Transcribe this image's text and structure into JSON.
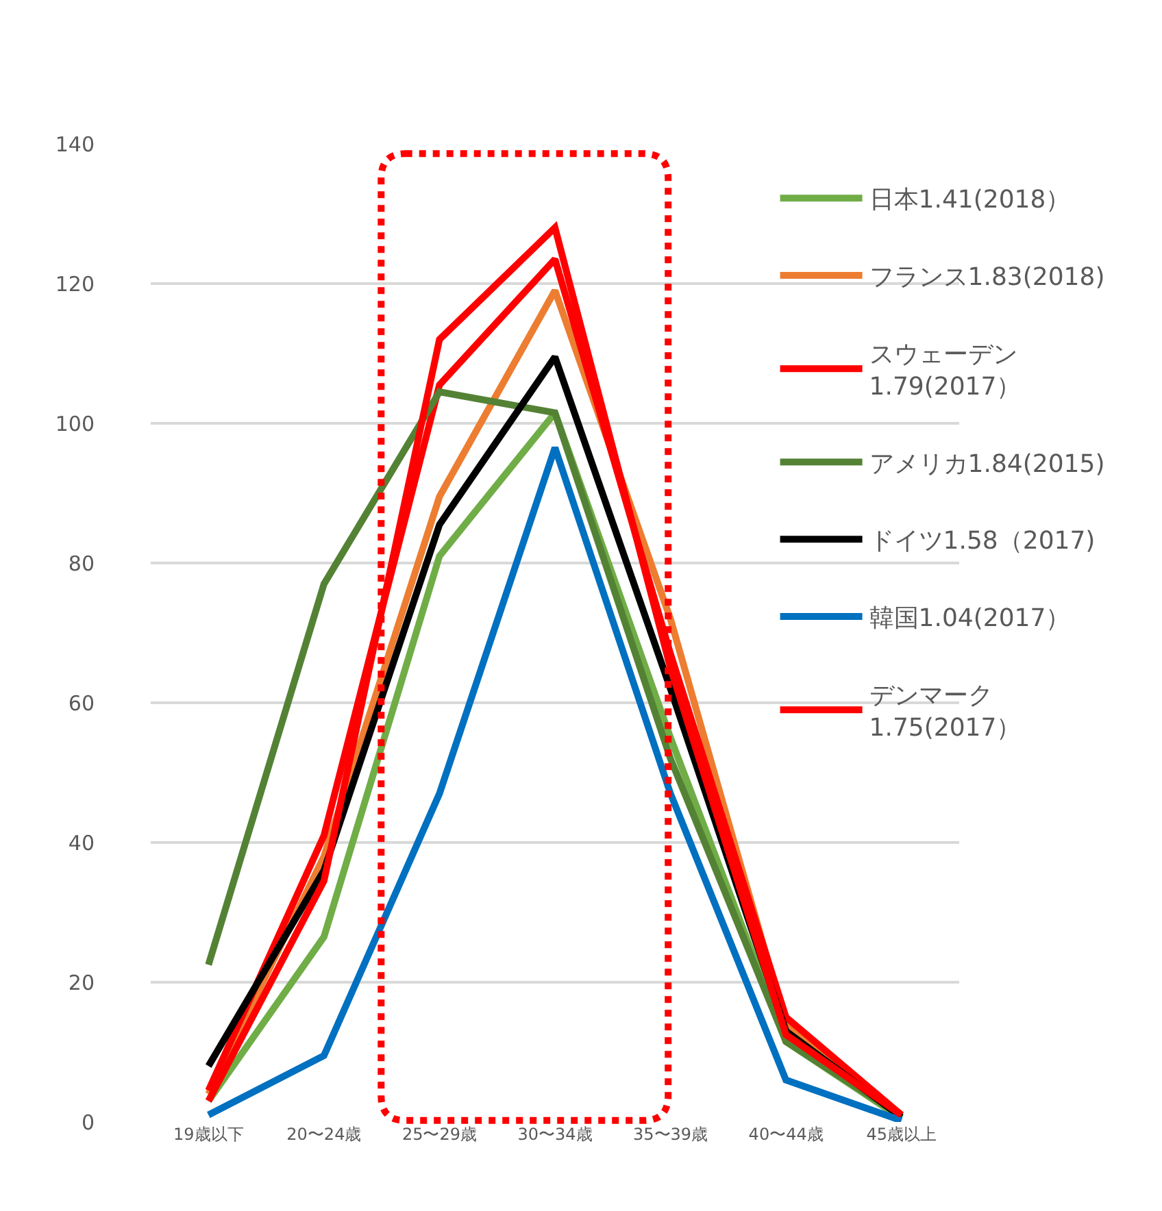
{
  "chart_data": {
    "type": "line",
    "categories": [
      "19歳以下",
      "20〜24歳",
      "25〜29歳",
      "30〜34歳",
      "35〜39歳",
      "40〜44歳",
      "45歳以上"
    ],
    "series": [
      {
        "name": "日本1.41(2018）",
        "color": "#70ad47",
        "values": [
          3,
          26.5,
          81,
          101.5,
          55,
          11.5,
          0.5
        ]
      },
      {
        "name": "フランス1.83(2018)",
        "color": "#ed7d31",
        "values": [
          4,
          38,
          89.5,
          119,
          72,
          14,
          1
        ]
      },
      {
        "name": "スウェーデン\n1.79(2017）",
        "color": "#ff0000",
        "values": [
          4.5,
          41,
          105.5,
          123.5,
          67,
          15,
          1
        ]
      },
      {
        "name": "アメリカ1.84(2015)",
        "color": "#548235",
        "values": [
          22.5,
          77,
          104.5,
          101.5,
          52,
          11.5,
          0.8
        ]
      },
      {
        "name": "ドイツ1.58（2017)",
        "color": "#000000",
        "values": [
          8,
          36,
          85.5,
          109.5,
          62,
          13,
          0.7
        ]
      },
      {
        "name": "韓国1.04(2017）",
        "color": "#0070c0",
        "values": [
          1,
          9.5,
          47,
          96.5,
          47,
          6,
          0.2
        ]
      },
      {
        "name": "デンマーク\n1.75(2017）",
        "color": "#ff0000",
        "values": [
          3,
          34.5,
          112,
          128,
          65,
          12.5,
          1
        ]
      }
    ],
    "ylim": [
      0,
      140
    ],
    "yticks": [
      0,
      20,
      40,
      60,
      80,
      100,
      120,
      140
    ],
    "grid": "y",
    "legend": "top right",
    "marker": "none",
    "line_style": "solid"
  }
}
